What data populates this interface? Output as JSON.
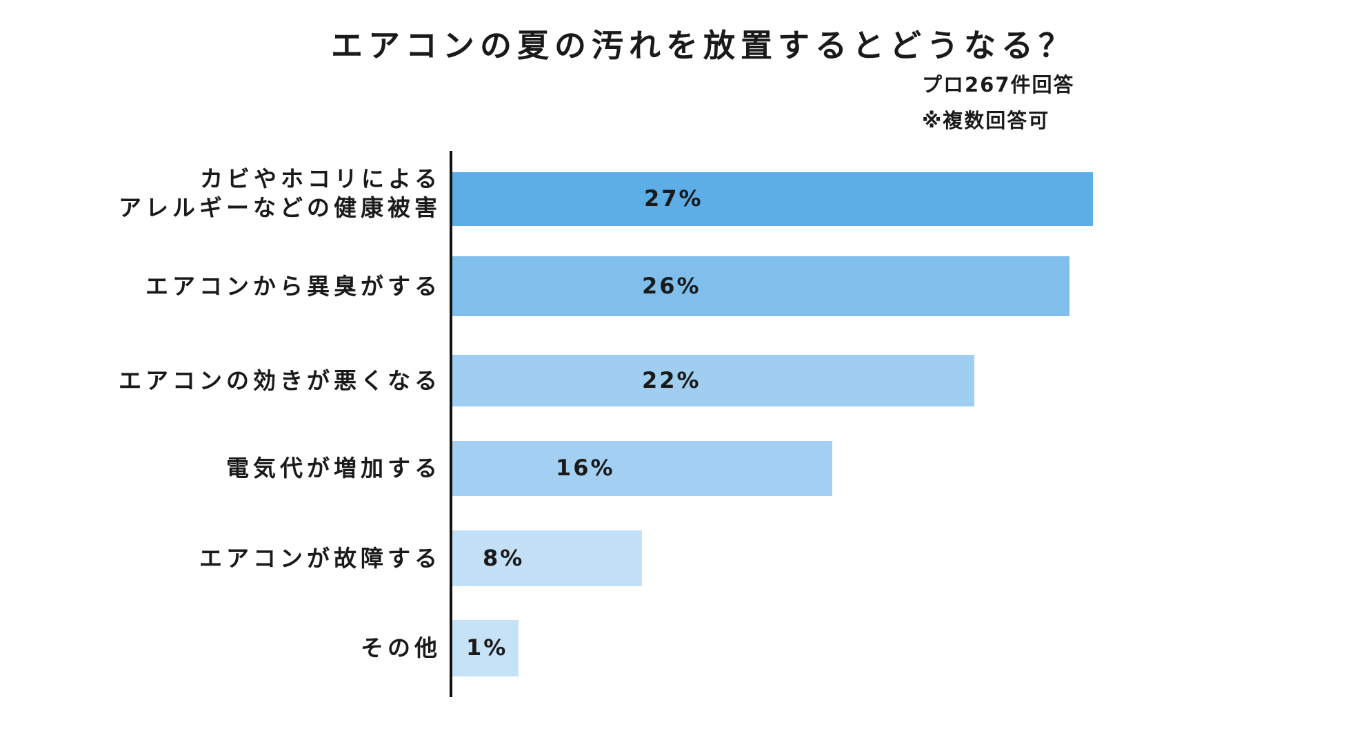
{
  "chart_data": {
    "type": "bar",
    "orientation": "horizontal",
    "title": "エアコンの夏の汚れを放置するとどうなる？",
    "notes": [
      "プロ267件回答",
      "※複数回答可"
    ],
    "categories": [
      "カビやホコリによる\nアレルギーなどの健康被害",
      "エアコンから異臭がする",
      "エアコンの効きが悪くなる",
      "電気代が増加する",
      "エアコンが故障する",
      "その他"
    ],
    "values": [
      27,
      26,
      22,
      16,
      8,
      1
    ],
    "value_labels": [
      "27%",
      "26%",
      "22%",
      "16%",
      "8%",
      "1%"
    ],
    "unit": "%",
    "grid": false,
    "legend": "none",
    "colors": [
      "#5DADE6",
      "#80BFEC",
      "#9FCEF0",
      "#A3D0F2",
      "#C3E0F6",
      "#C6E2F7"
    ]
  }
}
